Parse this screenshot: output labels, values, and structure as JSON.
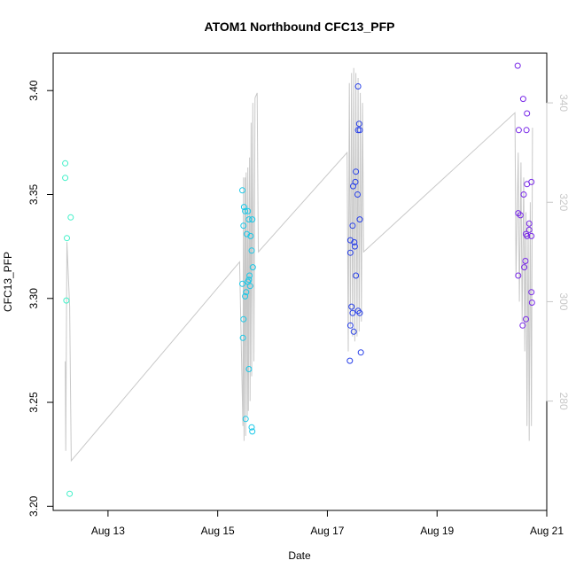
{
  "chart_data": {
    "type": "scatter",
    "title": "ATOM1 Northbound CFC13_PFP",
    "xlabel": "Date",
    "ylabel": "CFC13_PFP",
    "ylabel_right": "",
    "x_unit": "days in August",
    "xlim": [
      12.0,
      21.0
    ],
    "ylim": [
      3.198,
      3.418
    ],
    "y2lim": [
      258,
      350
    ],
    "x_ticks": [
      {
        "value": 13,
        "label": "Aug 13"
      },
      {
        "value": 15,
        "label": "Aug 15"
      },
      {
        "value": 17,
        "label": "Aug 17"
      },
      {
        "value": 19,
        "label": "Aug 19"
      },
      {
        "value": 21,
        "label": "Aug 21"
      }
    ],
    "y_ticks": [
      3.2,
      3.25,
      3.3,
      3.35,
      3.4
    ],
    "y_tick_labels": [
      "3.20",
      "3.25",
      "3.30",
      "3.35",
      "3.40"
    ],
    "y2_ticks": [
      280,
      300,
      320,
      340
    ],
    "y2_tick_labels": [
      "280",
      "300",
      "320",
      "340"
    ],
    "grid": false,
    "colors": {
      "aug12": "#40f0c8",
      "aug15": "#18c8e8",
      "aug17": "#2840e8",
      "aug20": "#7828e8",
      "line": "#c8c8c8",
      "axis": "#000000",
      "right_axis": "#c8c8c8"
    },
    "series": [
      {
        "color_key": "aug12",
        "points": [
          {
            "x": 12.22,
            "y": 3.365
          },
          {
            "x": 12.22,
            "y": 3.358
          },
          {
            "x": 12.25,
            "y": 3.329
          },
          {
            "x": 12.24,
            "y": 3.299
          },
          {
            "x": 12.32,
            "y": 3.339
          },
          {
            "x": 12.3,
            "y": 3.206
          }
        ]
      },
      {
        "color_key": "aug15",
        "points": [
          {
            "x": 15.45,
            "y": 3.352
          },
          {
            "x": 15.48,
            "y": 3.344
          },
          {
            "x": 15.5,
            "y": 3.342
          },
          {
            "x": 15.55,
            "y": 3.342
          },
          {
            "x": 15.47,
            "y": 3.335
          },
          {
            "x": 15.57,
            "y": 3.338
          },
          {
            "x": 15.53,
            "y": 3.331
          },
          {
            "x": 15.63,
            "y": 3.338
          },
          {
            "x": 15.6,
            "y": 3.33
          },
          {
            "x": 15.62,
            "y": 3.323
          },
          {
            "x": 15.64,
            "y": 3.315
          },
          {
            "x": 15.45,
            "y": 3.307
          },
          {
            "x": 15.58,
            "y": 3.311
          },
          {
            "x": 15.57,
            "y": 3.309
          },
          {
            "x": 15.55,
            "y": 3.308
          },
          {
            "x": 15.59,
            "y": 3.306
          },
          {
            "x": 15.52,
            "y": 3.303
          },
          {
            "x": 15.5,
            "y": 3.301
          },
          {
            "x": 15.47,
            "y": 3.29
          },
          {
            "x": 15.46,
            "y": 3.281
          },
          {
            "x": 15.57,
            "y": 3.266
          },
          {
            "x": 15.51,
            "y": 3.242
          },
          {
            "x": 15.62,
            "y": 3.238
          },
          {
            "x": 15.63,
            "y": 3.236
          }
        ]
      },
      {
        "color_key": "aug17",
        "points": [
          {
            "x": 17.56,
            "y": 3.402
          },
          {
            "x": 17.58,
            "y": 3.384
          },
          {
            "x": 17.56,
            "y": 3.381
          },
          {
            "x": 17.59,
            "y": 3.381
          },
          {
            "x": 17.52,
            "y": 3.361
          },
          {
            "x": 17.51,
            "y": 3.356
          },
          {
            "x": 17.47,
            "y": 3.354
          },
          {
            "x": 17.55,
            "y": 3.35
          },
          {
            "x": 17.59,
            "y": 3.338
          },
          {
            "x": 17.46,
            "y": 3.335
          },
          {
            "x": 17.42,
            "y": 3.328
          },
          {
            "x": 17.49,
            "y": 3.327
          },
          {
            "x": 17.5,
            "y": 3.325
          },
          {
            "x": 17.42,
            "y": 3.322
          },
          {
            "x": 17.52,
            "y": 3.311
          },
          {
            "x": 17.44,
            "y": 3.296
          },
          {
            "x": 17.46,
            "y": 3.293
          },
          {
            "x": 17.56,
            "y": 3.294
          },
          {
            "x": 17.59,
            "y": 3.293
          },
          {
            "x": 17.42,
            "y": 3.287
          },
          {
            "x": 17.48,
            "y": 3.284
          },
          {
            "x": 17.61,
            "y": 3.274
          },
          {
            "x": 17.41,
            "y": 3.27
          }
        ]
      },
      {
        "color_key": "aug20",
        "points": [
          {
            "x": 20.47,
            "y": 3.412
          },
          {
            "x": 20.57,
            "y": 3.396
          },
          {
            "x": 20.64,
            "y": 3.389
          },
          {
            "x": 20.49,
            "y": 3.381
          },
          {
            "x": 20.63,
            "y": 3.381
          },
          {
            "x": 20.72,
            "y": 3.356
          },
          {
            "x": 20.64,
            "y": 3.355
          },
          {
            "x": 20.58,
            "y": 3.35
          },
          {
            "x": 20.48,
            "y": 3.341
          },
          {
            "x": 20.52,
            "y": 3.34
          },
          {
            "x": 20.68,
            "y": 3.336
          },
          {
            "x": 20.68,
            "y": 3.333
          },
          {
            "x": 20.62,
            "y": 3.331
          },
          {
            "x": 20.64,
            "y": 3.33
          },
          {
            "x": 20.72,
            "y": 3.33
          },
          {
            "x": 20.61,
            "y": 3.318
          },
          {
            "x": 20.59,
            "y": 3.315
          },
          {
            "x": 20.48,
            "y": 3.311
          },
          {
            "x": 20.72,
            "y": 3.303
          },
          {
            "x": 20.73,
            "y": 3.298
          },
          {
            "x": 20.62,
            "y": 3.29
          },
          {
            "x": 20.56,
            "y": 3.287
          }
        ]
      }
    ],
    "line_series": {
      "axis": "right",
      "points": [
        {
          "x": 12.22,
          "y": 288
        },
        {
          "x": 12.23,
          "y": 270
        },
        {
          "x": 12.25,
          "y": 312
        },
        {
          "x": 12.3,
          "y": 299
        },
        {
          "x": 12.33,
          "y": 268
        },
        {
          "x": 15.4,
          "y": 308
        },
        {
          "x": 15.46,
          "y": 275
        },
        {
          "x": 15.47,
          "y": 325
        },
        {
          "x": 15.48,
          "y": 272
        },
        {
          "x": 15.5,
          "y": 325
        },
        {
          "x": 15.51,
          "y": 273
        },
        {
          "x": 15.52,
          "y": 326
        },
        {
          "x": 15.54,
          "y": 277
        },
        {
          "x": 15.55,
          "y": 327
        },
        {
          "x": 15.56,
          "y": 278
        },
        {
          "x": 15.58,
          "y": 329
        },
        {
          "x": 15.59,
          "y": 280
        },
        {
          "x": 15.61,
          "y": 336
        },
        {
          "x": 15.62,
          "y": 285
        },
        {
          "x": 15.64,
          "y": 340
        },
        {
          "x": 15.66,
          "y": 288
        },
        {
          "x": 15.68,
          "y": 341
        },
        {
          "x": 15.72,
          "y": 342
        },
        {
          "x": 15.74,
          "y": 310
        },
        {
          "x": 17.36,
          "y": 330
        },
        {
          "x": 17.38,
          "y": 290
        },
        {
          "x": 17.4,
          "y": 344
        },
        {
          "x": 17.42,
          "y": 295
        },
        {
          "x": 17.44,
          "y": 346
        },
        {
          "x": 17.46,
          "y": 293
        },
        {
          "x": 17.48,
          "y": 347
        },
        {
          "x": 17.5,
          "y": 292
        },
        {
          "x": 17.52,
          "y": 346
        },
        {
          "x": 17.54,
          "y": 293
        },
        {
          "x": 17.56,
          "y": 345
        },
        {
          "x": 17.58,
          "y": 294
        },
        {
          "x": 17.6,
          "y": 342
        },
        {
          "x": 17.62,
          "y": 296
        },
        {
          "x": 17.64,
          "y": 340
        },
        {
          "x": 17.66,
          "y": 310
        },
        {
          "x": 20.42,
          "y": 338
        },
        {
          "x": 20.44,
          "y": 305
        },
        {
          "x": 20.48,
          "y": 330
        },
        {
          "x": 20.5,
          "y": 300
        },
        {
          "x": 20.53,
          "y": 328
        },
        {
          "x": 20.55,
          "y": 296
        },
        {
          "x": 20.58,
          "y": 325
        },
        {
          "x": 20.6,
          "y": 290
        },
        {
          "x": 20.62,
          "y": 318
        },
        {
          "x": 20.64,
          "y": 275
        },
        {
          "x": 20.66,
          "y": 316
        },
        {
          "x": 20.68,
          "y": 272
        },
        {
          "x": 20.7,
          "y": 320
        },
        {
          "x": 20.72,
          "y": 275
        },
        {
          "x": 20.74,
          "y": 335
        }
      ]
    }
  }
}
